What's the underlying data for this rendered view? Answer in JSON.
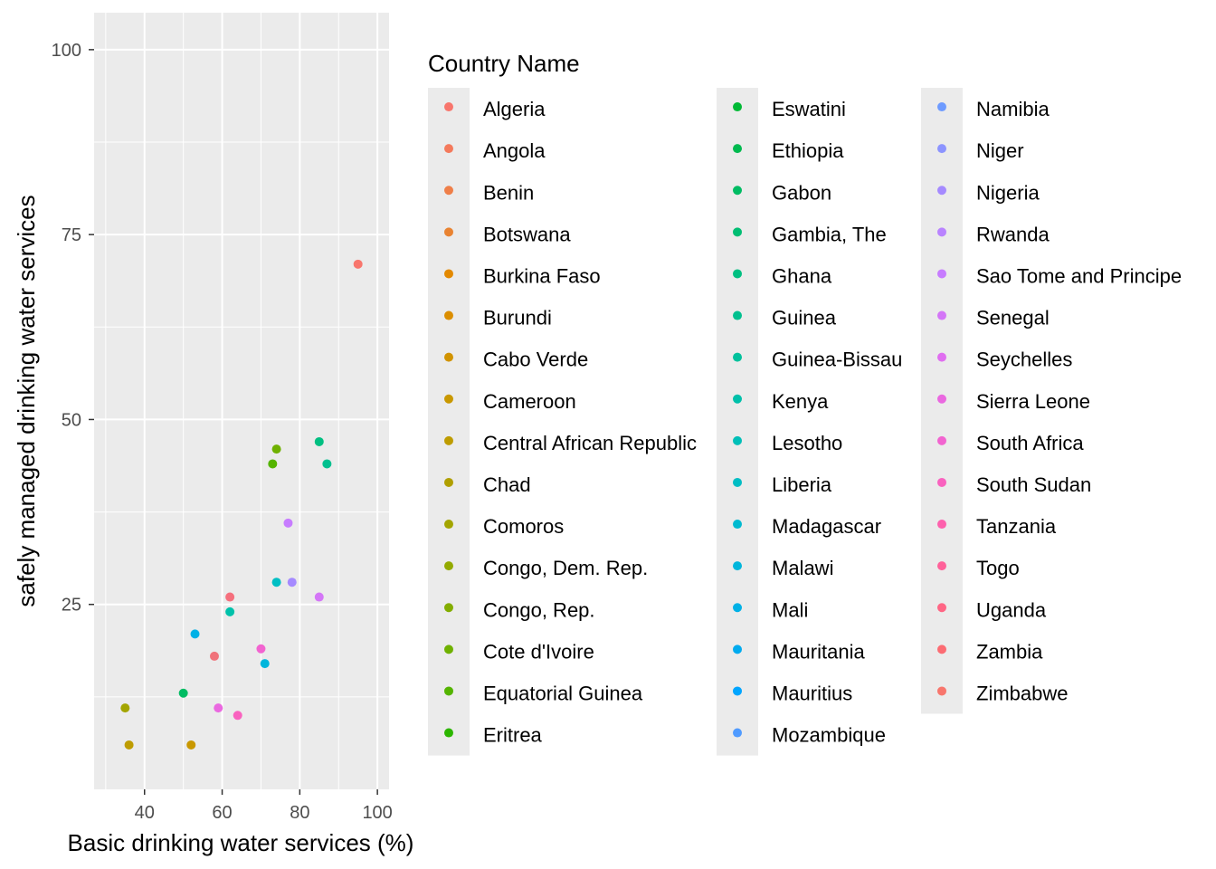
{
  "chart_data": {
    "type": "scatter",
    "title": "",
    "xlabel": "Basic drinking water services (%)",
    "ylabel": "safely managed drinking water services",
    "xlim": [
      27,
      103
    ],
    "ylim": [
      0,
      105
    ],
    "xticks": [
      40,
      60,
      80,
      100
    ],
    "yticks": [
      25,
      50,
      75,
      100
    ],
    "grid": true,
    "legend": {
      "title": "Country Name",
      "placement": "right",
      "columns": [
        [
          "Algeria",
          "Angola",
          "Benin",
          "Botswana",
          "Burkina Faso",
          "Burundi",
          "Cabo Verde",
          "Cameroon",
          "Central African Republic",
          "Chad",
          "Comoros",
          "Congo, Dem. Rep.",
          "Congo, Rep.",
          "Cote d'Ivoire",
          "Equatorial Guinea",
          "Eritrea"
        ],
        [
          "Eswatini",
          "Ethiopia",
          "Gabon",
          "Gambia, The",
          "Ghana",
          "Guinea",
          "Guinea-Bissau",
          "Kenya",
          "Lesotho",
          "Liberia",
          "Madagascar",
          "Malawi",
          "Mali",
          "Mauritania",
          "Mauritius",
          "Mozambique"
        ],
        [
          "Namibia",
          "Niger",
          "Nigeria",
          "Rwanda",
          "Sao Tome and Principe",
          "Senegal",
          "Seychelles",
          "Sierra Leone",
          "South Africa",
          "South Sudan",
          "Tanzania",
          "Togo",
          "Uganda",
          "Zambia",
          "Zimbabwe"
        ]
      ],
      "colors": [
        [
          "#F8766D",
          "#F47A5C",
          "#EF7F49",
          "#E98331",
          "#E38900",
          "#DB8E00",
          "#D19300",
          "#C99800",
          "#BE9C00",
          "#B09F00",
          "#A3A500",
          "#93AA00",
          "#83AD00",
          "#6FB100",
          "#54B400",
          "#2CB600"
        ],
        [
          "#00B935",
          "#00BA4F",
          "#00BC63",
          "#00BE73",
          "#00BF81",
          "#00C08F",
          "#00C19C",
          "#00C0AA",
          "#00BFB8",
          "#00BDC4",
          "#00BAD0",
          "#00B6DC",
          "#00B1E6",
          "#00ABEF",
          "#00A5FF",
          "#509BFF"
        ],
        [
          "#6E9BFF",
          "#8C94FF",
          "#A58AFF",
          "#B983FF",
          "#C77CFF",
          "#D476F7",
          "#E06EF0",
          "#EA68E0",
          "#F264D0",
          "#F962BF",
          "#FD61AD",
          "#FF629A",
          "#FF6685",
          "#FC6C73",
          "#F8766D"
        ]
      ]
    },
    "points": [
      {
        "x": 95,
        "y": 71,
        "color": "#F8766D"
      },
      {
        "x": 62,
        "y": 26,
        "color": "#F5707D"
      },
      {
        "x": 58,
        "y": 18,
        "color": "#F0727A"
      },
      {
        "x": 85,
        "y": 47,
        "color": "#00BF81"
      },
      {
        "x": 87,
        "y": 44,
        "color": "#00C08F"
      },
      {
        "x": 74,
        "y": 46,
        "color": "#6FB100"
      },
      {
        "x": 73,
        "y": 44,
        "color": "#54B400"
      },
      {
        "x": 77,
        "y": 36,
        "color": "#C77CFF"
      },
      {
        "x": 78,
        "y": 28,
        "color": "#A58AFF"
      },
      {
        "x": 74,
        "y": 28,
        "color": "#00BFC4"
      },
      {
        "x": 85,
        "y": 26,
        "color": "#D476F7"
      },
      {
        "x": 62,
        "y": 24,
        "color": "#00C1AA"
      },
      {
        "x": 53,
        "y": 21,
        "color": "#00B1E6"
      },
      {
        "x": 70,
        "y": 19,
        "color": "#F264D0"
      },
      {
        "x": 71,
        "y": 17,
        "color": "#00B6DC"
      },
      {
        "x": 50,
        "y": 13,
        "color": "#00BC63"
      },
      {
        "x": 59,
        "y": 11,
        "color": "#EA68E0"
      },
      {
        "x": 64,
        "y": 10,
        "color": "#F962BF"
      },
      {
        "x": 35,
        "y": 11,
        "color": "#A3A500"
      },
      {
        "x": 36,
        "y": 6,
        "color": "#BE9C00"
      },
      {
        "x": 52,
        "y": 6,
        "color": "#C99800"
      }
    ]
  }
}
